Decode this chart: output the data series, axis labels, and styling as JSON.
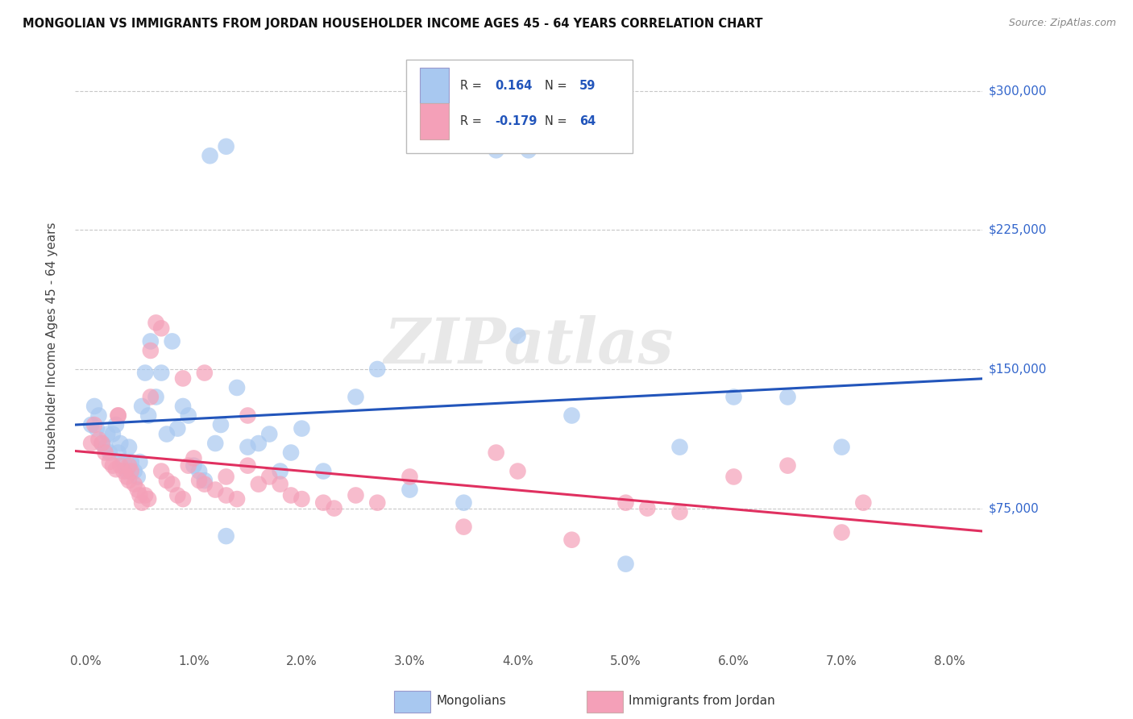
{
  "title": "MONGOLIAN VS IMMIGRANTS FROM JORDAN HOUSEHOLDER INCOME AGES 45 - 64 YEARS CORRELATION CHART",
  "source": "Source: ZipAtlas.com",
  "ylabel": "Householder Income Ages 45 - 64 years",
  "ytick_labels": [
    "$75,000",
    "$150,000",
    "$225,000",
    "$300,000"
  ],
  "ytick_vals": [
    75000,
    150000,
    225000,
    300000
  ],
  "ylim": [
    0,
    325000
  ],
  "xlim": [
    -0.1,
    8.3
  ],
  "R_mongolian": 0.164,
  "N_mongolian": 59,
  "R_jordan": -0.179,
  "N_jordan": 64,
  "color_mongolian": "#A8C8F0",
  "color_jordan": "#F4A0B8",
  "line_color_mongolian": "#2255BB",
  "line_color_jordan": "#E03060",
  "watermark": "ZIPatlas",
  "mongolian_x": [
    0.05,
    0.08,
    0.1,
    0.12,
    0.15,
    0.18,
    0.2,
    0.22,
    0.25,
    0.28,
    0.3,
    0.32,
    0.35,
    0.38,
    0.4,
    0.42,
    0.45,
    0.48,
    0.5,
    0.52,
    0.55,
    0.58,
    0.6,
    0.65,
    0.7,
    0.75,
    0.8,
    0.85,
    0.9,
    0.95,
    1.0,
    1.05,
    1.1,
    1.2,
    1.25,
    1.3,
    1.4,
    1.5,
    1.6,
    1.7,
    1.8,
    1.9,
    2.0,
    2.2,
    2.5,
    2.7,
    3.0,
    3.5,
    4.0,
    4.5,
    5.0,
    5.5,
    6.0,
    6.5,
    7.0,
    1.15,
    1.3,
    3.8,
    4.1
  ],
  "mongolian_y": [
    120000,
    130000,
    118000,
    125000,
    110000,
    108000,
    115000,
    105000,
    115000,
    120000,
    105000,
    110000,
    100000,
    95000,
    108000,
    100000,
    95000,
    92000,
    100000,
    130000,
    148000,
    125000,
    165000,
    135000,
    148000,
    115000,
    165000,
    118000,
    130000,
    125000,
    98000,
    95000,
    90000,
    110000,
    120000,
    60000,
    140000,
    108000,
    110000,
    115000,
    95000,
    105000,
    118000,
    95000,
    135000,
    150000,
    85000,
    78000,
    168000,
    125000,
    45000,
    108000,
    135000,
    135000,
    108000,
    265000,
    270000,
    268000,
    268000
  ],
  "jordan_x": [
    0.05,
    0.08,
    0.12,
    0.15,
    0.18,
    0.22,
    0.25,
    0.28,
    0.3,
    0.32,
    0.35,
    0.38,
    0.4,
    0.42,
    0.45,
    0.48,
    0.5,
    0.52,
    0.55,
    0.58,
    0.6,
    0.65,
    0.7,
    0.75,
    0.8,
    0.85,
    0.9,
    0.95,
    1.0,
    1.05,
    1.1,
    1.2,
    1.3,
    1.4,
    1.5,
    1.6,
    1.7,
    1.8,
    1.9,
    2.0,
    2.2,
    2.5,
    2.7,
    3.0,
    3.5,
    3.8,
    4.0,
    4.5,
    5.0,
    5.2,
    5.5,
    6.0,
    6.5,
    7.0,
    7.2,
    0.3,
    0.4,
    0.6,
    0.7,
    0.9,
    1.1,
    1.3,
    1.5,
    2.3
  ],
  "jordan_y": [
    110000,
    120000,
    112000,
    110000,
    105000,
    100000,
    98000,
    96000,
    125000,
    98000,
    95000,
    92000,
    90000,
    95000,
    88000,
    85000,
    82000,
    78000,
    82000,
    80000,
    135000,
    175000,
    95000,
    90000,
    88000,
    82000,
    80000,
    98000,
    102000,
    90000,
    88000,
    85000,
    82000,
    80000,
    98000,
    88000,
    92000,
    88000,
    82000,
    80000,
    78000,
    82000,
    78000,
    92000,
    65000,
    105000,
    95000,
    58000,
    78000,
    75000,
    73000,
    92000,
    98000,
    62000,
    78000,
    125000,
    98000,
    160000,
    172000,
    145000,
    148000,
    92000,
    125000,
    75000
  ]
}
